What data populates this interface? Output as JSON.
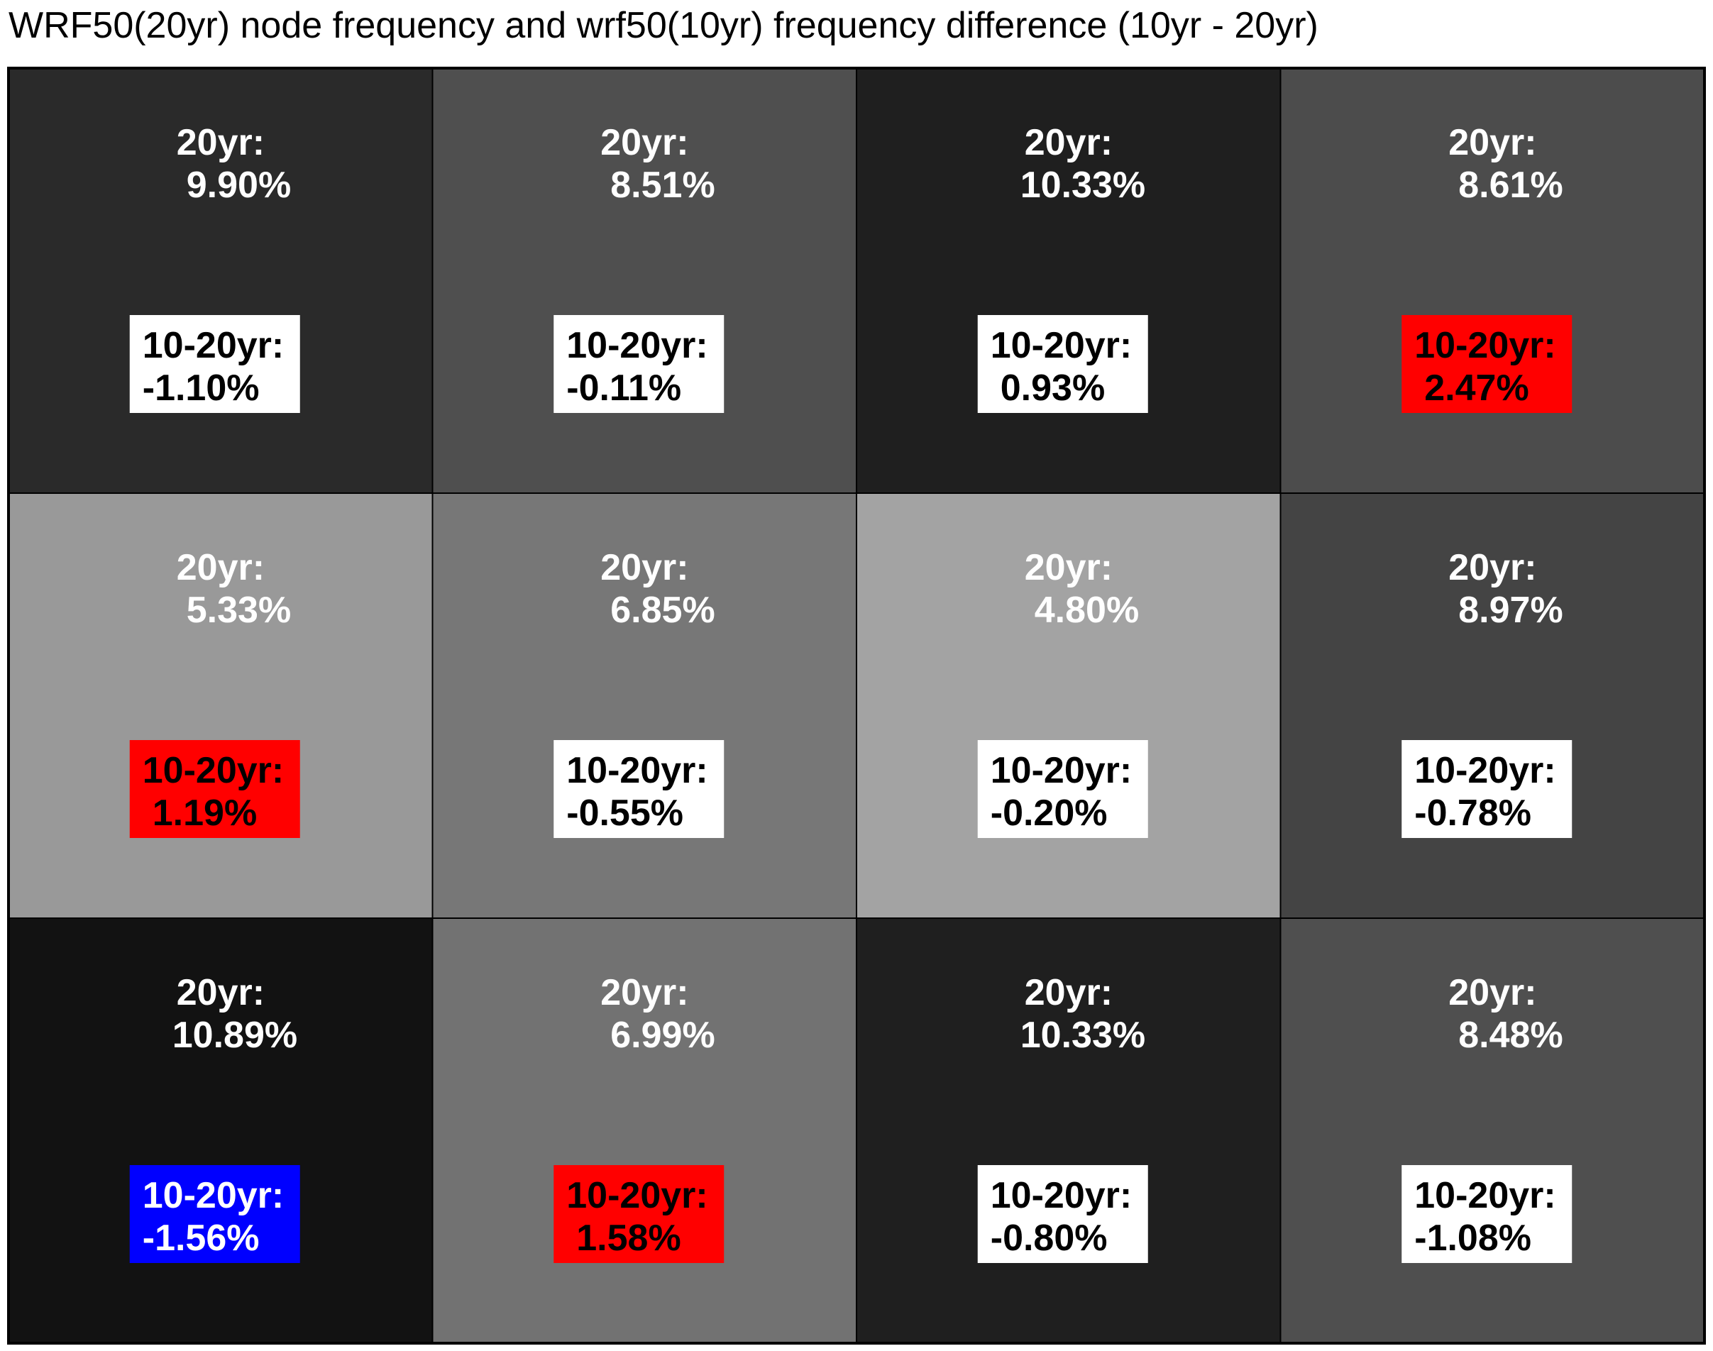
{
  "chart_data": {
    "type": "heatmap",
    "title": "WRF50(20yr) node frequency and wrf50(10yr) frequency difference (10yr - 20yr)",
    "xlabel": "",
    "ylabel": "",
    "rows": 3,
    "cols": 4,
    "freq_label": "20yr:",
    "diff_label": "10-20yr:",
    "cells": [
      {
        "row": 0,
        "col": 0,
        "freq": "9.90%",
        "diff": "-1.10%",
        "fill": "#2a2a2a",
        "box": "#ffffff",
        "box_text": "#000000"
      },
      {
        "row": 0,
        "col": 1,
        "freq": "8.51%",
        "diff": "-0.11%",
        "fill": "#4f4f4f",
        "box": "#ffffff",
        "box_text": "#000000"
      },
      {
        "row": 0,
        "col": 2,
        "freq": "10.33%",
        "diff": "0.93%",
        "fill": "#1f1f1f",
        "box": "#ffffff",
        "box_text": "#000000"
      },
      {
        "row": 0,
        "col": 3,
        "freq": "8.61%",
        "diff": "2.47%",
        "fill": "#4c4c4c",
        "box": "#ff0000",
        "box_text": "#000000"
      },
      {
        "row": 1,
        "col": 0,
        "freq": "5.33%",
        "diff": "1.19%",
        "fill": "#999999",
        "box": "#ff0000",
        "box_text": "#000000"
      },
      {
        "row": 1,
        "col": 1,
        "freq": "6.85%",
        "diff": "-0.55%",
        "fill": "#777777",
        "box": "#ffffff",
        "box_text": "#000000"
      },
      {
        "row": 1,
        "col": 2,
        "freq": "4.80%",
        "diff": "-0.20%",
        "fill": "#a3a3a3",
        "box": "#ffffff",
        "box_text": "#000000"
      },
      {
        "row": 1,
        "col": 3,
        "freq": "8.97%",
        "diff": "-0.78%",
        "fill": "#444444",
        "box": "#ffffff",
        "box_text": "#000000"
      },
      {
        "row": 2,
        "col": 0,
        "freq": "10.89%",
        "diff": "-1.56%",
        "fill": "#121212",
        "box": "#0000ff",
        "box_text": "#ffffff"
      },
      {
        "row": 2,
        "col": 1,
        "freq": "6.99%",
        "diff": "1.58%",
        "fill": "#727272",
        "box": "#ff0000",
        "box_text": "#000000"
      },
      {
        "row": 2,
        "col": 2,
        "freq": "10.33%",
        "diff": "-0.80%",
        "fill": "#1f1f1f",
        "box": "#ffffff",
        "box_text": "#000000"
      },
      {
        "row": 2,
        "col": 3,
        "freq": "8.48%",
        "diff": "-1.08%",
        "fill": "#4f4f4f",
        "box": "#ffffff",
        "box_text": "#000000"
      }
    ]
  },
  "colors": {
    "border": "#000000",
    "freq_text": "#ffffff",
    "positive_diff_box": "#ff0000",
    "negative_large_diff_box": "#0000ff",
    "neutral_diff_box": "#ffffff"
  }
}
